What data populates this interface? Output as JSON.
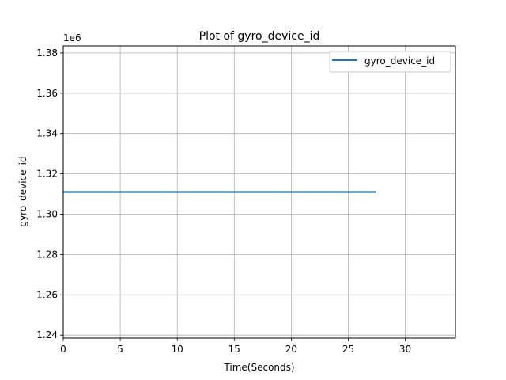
{
  "chart_data": {
    "type": "line",
    "title": "Plot of gyro_device_id",
    "xlabel": "Time(Seconds)",
    "ylabel": "gyro_device_id",
    "y_offset_label": "1e6",
    "xlim": [
      0,
      34.4
    ],
    "ylim": [
      1.2385,
      1.3835
    ],
    "x_ticks": [
      0,
      5,
      10,
      15,
      20,
      25,
      30
    ],
    "x_tick_labels": [
      "0",
      "5",
      "10",
      "15",
      "20",
      "25",
      "30"
    ],
    "y_ticks": [
      1.24,
      1.26,
      1.28,
      1.3,
      1.32,
      1.34,
      1.36,
      1.38
    ],
    "y_tick_labels": [
      "1.24",
      "1.26",
      "1.28",
      "1.30",
      "1.32",
      "1.34",
      "1.36",
      "1.38"
    ],
    "grid": true,
    "legend_position": "top-right",
    "series": [
      {
        "name": "gyro_device_id",
        "color": "#1f77b4",
        "x": [
          0,
          27.4
        ],
        "y": [
          1.311,
          1.311
        ]
      }
    ]
  }
}
